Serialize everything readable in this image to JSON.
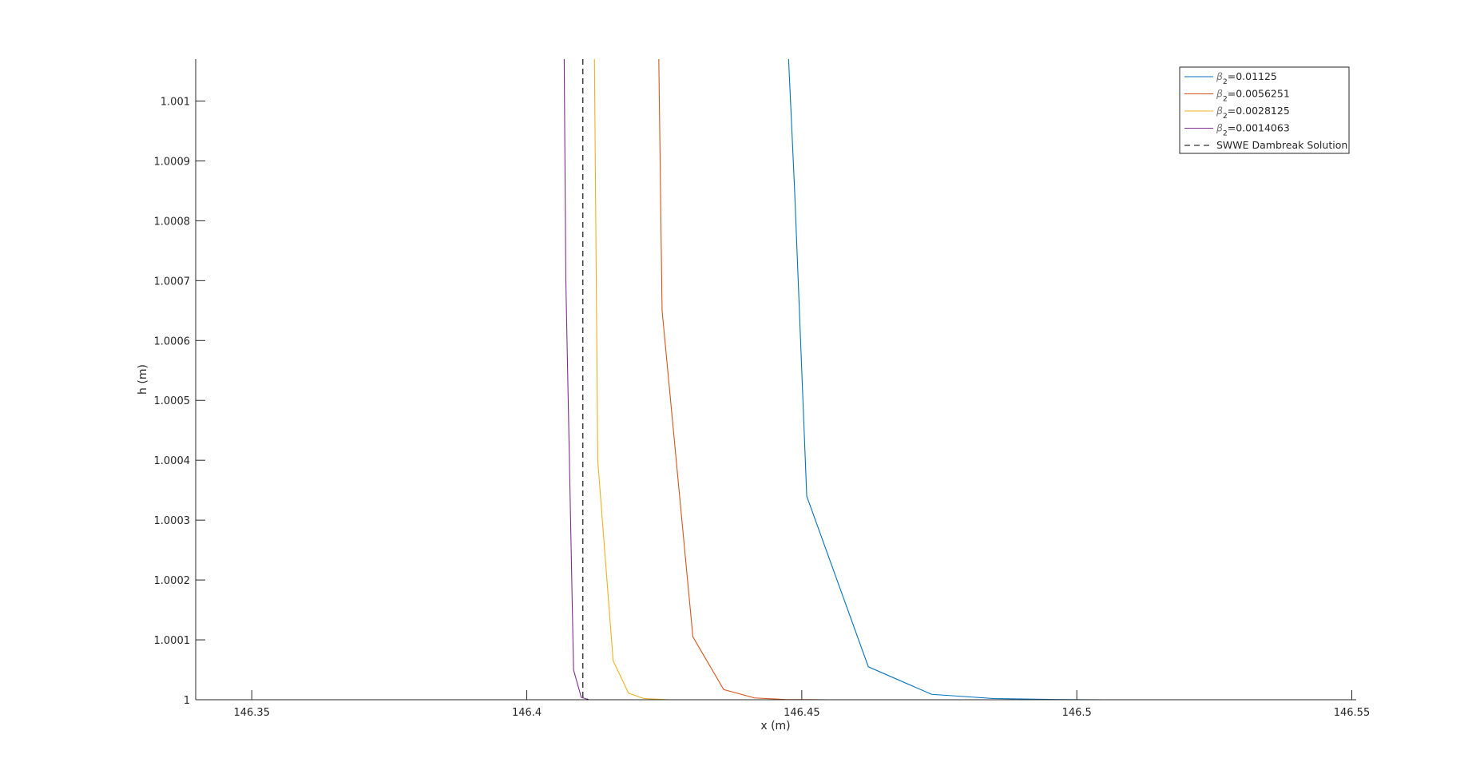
{
  "chart_data": {
    "type": "line",
    "title": "",
    "xlabel": "x (m)",
    "ylabel": "h (m)",
    "xlim": [
      146.3398,
      146.5508
    ],
    "ylim": [
      1.0,
      1.00107
    ],
    "grid": false,
    "legend_position": "top-right",
    "x_ticks": [
      146.35,
      146.4,
      146.45,
      146.5,
      146.55
    ],
    "x_tick_labels": [
      "146.35",
      "146.4",
      "146.45",
      "146.5",
      "146.55"
    ],
    "y_ticks": [
      1.0,
      1.0001,
      1.0002,
      1.0003,
      1.0004,
      1.0005,
      1.0006,
      1.0007,
      1.0008,
      1.0009,
      1.001
    ],
    "y_tick_labels": [
      "1",
      "1.0001",
      "1.0002",
      "1.0003",
      "1.0004",
      "1.0005",
      "1.0006",
      "1.0007",
      "1.0008",
      "1.0009",
      "1.001"
    ],
    "series": [
      {
        "legend_symbol": "β",
        "legend_subscript": "2",
        "legend_suffix": "=0.01125",
        "color": "#0072BD",
        "dash": "solid",
        "points": [
          [
            146.4476,
            1.00107
          ],
          [
            146.4487,
            1.00085
          ],
          [
            146.4509,
            1.00034
          ],
          [
            146.4621,
            1.000055
          ],
          [
            146.4736,
            1.000009
          ],
          [
            146.4849,
            1.000002
          ],
          [
            146.4962,
            1.0000005
          ],
          [
            146.505,
            1.0
          ],
          [
            146.5508,
            1.0
          ]
        ]
      },
      {
        "legend_symbol": "β",
        "legend_subscript": "2",
        "legend_suffix": "=0.0056251",
        "color": "#D95319",
        "dash": "solid",
        "points": [
          [
            146.424,
            1.00107
          ],
          [
            146.4246,
            1.00065
          ],
          [
            146.4302,
            1.000105
          ],
          [
            146.4358,
            1.000017
          ],
          [
            146.4414,
            1.000003
          ],
          [
            146.447,
            1.0000005
          ],
          [
            146.455,
            1.0
          ],
          [
            146.5508,
            1.0
          ]
        ]
      },
      {
        "legend_symbol": "β",
        "legend_subscript": "2",
        "legend_suffix": "=0.0028125",
        "color": "#EDB120",
        "dash": "solid",
        "points": [
          [
            146.4123,
            1.00107
          ],
          [
            146.4129,
            1.0004
          ],
          [
            146.4157,
            1.000065
          ],
          [
            146.4185,
            1.000011
          ],
          [
            146.4213,
            1.000002
          ],
          [
            146.426,
            1.0
          ],
          [
            146.5508,
            1.0
          ]
        ]
      },
      {
        "legend_symbol": "β",
        "legend_subscript": "2",
        "legend_suffix": "=0.0014063",
        "color": "#7E2F8E",
        "dash": "solid",
        "points": [
          [
            146.4068,
            1.00107
          ],
          [
            146.4071,
            1.0007
          ],
          [
            146.4085,
            1.00005
          ],
          [
            146.4099,
            1.000004
          ],
          [
            146.4113,
            1.0
          ],
          [
            146.5508,
            1.0
          ]
        ]
      },
      {
        "legend_text": "SWWE Dambreak Solution",
        "color": "#000000",
        "dash": "dashed",
        "points": [
          [
            146.4102,
            1.00107
          ],
          [
            146.4102,
            1.000005
          ],
          [
            146.4112,
            1.0
          ],
          [
            146.5508,
            1.0
          ]
        ]
      }
    ]
  }
}
